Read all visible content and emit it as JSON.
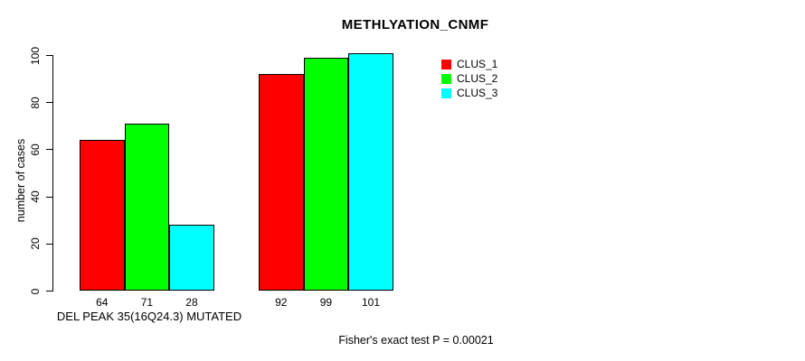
{
  "chart_data": {
    "type": "bar",
    "title": "METHLYATION_CNMF",
    "xlabel": "",
    "ylabel": "number of cases",
    "ylim": [
      0,
      100
    ],
    "yticks": [
      0,
      20,
      40,
      60,
      80,
      100
    ],
    "grid": false,
    "legend_position": "top-right",
    "bar_value_labels_shown": true,
    "series": [
      {
        "name": "CLUS_1",
        "color": "#ff0000"
      },
      {
        "name": "CLUS_2",
        "color": "#00ff00"
      },
      {
        "name": "CLUS_3",
        "color": "#00ffff"
      }
    ],
    "groups": [
      {
        "label": "DEL PEAK 35(16Q24.3) MUTATED",
        "values": [
          64,
          71,
          28
        ]
      },
      {
        "label": "",
        "values": [
          92,
          99,
          101
        ]
      }
    ],
    "annotation": "Fisher's exact test P = 0.00021",
    "bar_border_color": "#000000",
    "text_color": "#000000",
    "background_color": "#ffffff"
  }
}
